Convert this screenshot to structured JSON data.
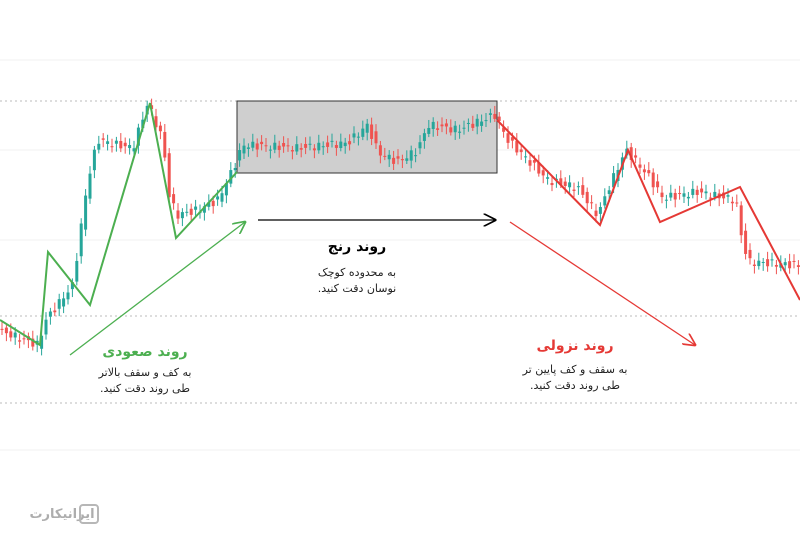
{
  "annotations": {
    "range": {
      "title": "روند رنج",
      "lines": [
        "به محدوده کوچک",
        "نوسان دقت کنید."
      ]
    },
    "uptrend": {
      "title": "روند صعودی",
      "lines": [
        "به کف و سقف بالاتر",
        "طی روند دقت کنید."
      ]
    },
    "downtrend": {
      "title": "روند نزولی",
      "lines": [
        "به سقف و کف پایین تر",
        "طی روند دقت کنید."
      ]
    }
  },
  "watermark": {
    "brand": "ایرانیکارت"
  }
}
